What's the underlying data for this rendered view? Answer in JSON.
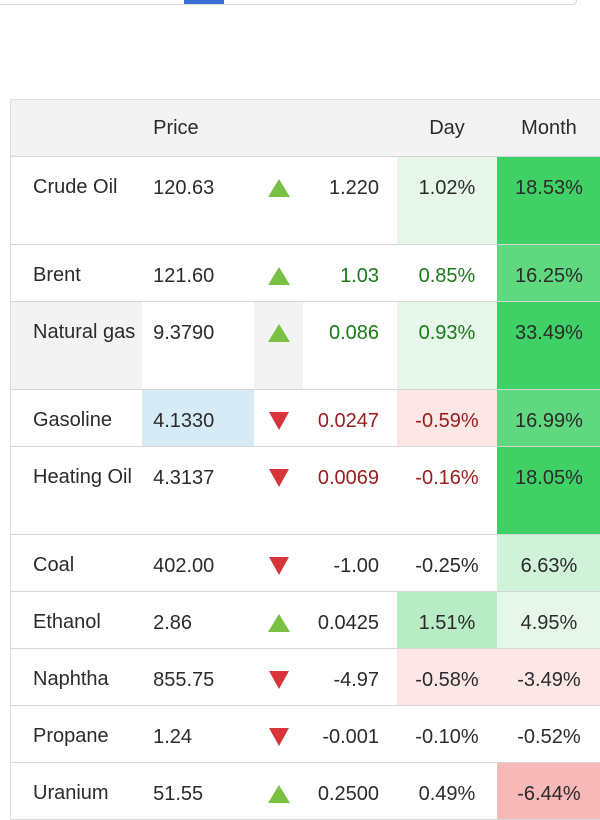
{
  "header": {
    "price": "Price",
    "day": "Day",
    "month": "Month"
  },
  "rows": [
    {
      "name": "Crude Oil",
      "price": "120.63",
      "direction": "up",
      "change": "1.220",
      "day": "1.02%",
      "month": "18.53%"
    },
    {
      "name": "Brent",
      "price": "121.60",
      "direction": "up",
      "change": "1.03",
      "day": "0.85%",
      "month": "16.25%"
    },
    {
      "name": "Natural gas",
      "price": "9.3790",
      "direction": "up",
      "change": "0.086",
      "day": "0.93%",
      "month": "33.49%"
    },
    {
      "name": "Gasoline",
      "price": "4.1330",
      "direction": "down",
      "change": "0.0247",
      "day": "-0.59%",
      "month": "16.99%"
    },
    {
      "name": "Heating Oil",
      "price": "4.3137",
      "direction": "down",
      "change": "0.0069",
      "day": "-0.16%",
      "month": "18.05%"
    },
    {
      "name": "Coal",
      "price": "402.00",
      "direction": "down",
      "change": "-1.00",
      "day": "-0.25%",
      "month": "6.63%"
    },
    {
      "name": "Ethanol",
      "price": "2.86",
      "direction": "up",
      "change": "0.0425",
      "day": "1.51%",
      "month": "4.95%"
    },
    {
      "name": "Naphtha",
      "price": "855.75",
      "direction": "down",
      "change": "-4.97",
      "day": "-0.58%",
      "month": "-3.49%"
    },
    {
      "name": "Propane",
      "price": "1.24",
      "direction": "down",
      "change": "-0.001",
      "day": "-0.10%",
      "month": "-0.52%"
    },
    {
      "name": "Uranium",
      "price": "51.55",
      "direction": "up",
      "change": "0.2500",
      "day": "0.49%",
      "month": "-6.44%"
    }
  ],
  "icons": {
    "up": "triangle-up-icon",
    "down": "triangle-down-icon"
  },
  "colors": {
    "up_arrow": "#7ac143",
    "down_arrow": "#d9343a",
    "up_text": "#1a7a1a",
    "down_text": "#9a1c1c",
    "strong_green": "#3fd165",
    "light_red": "#fde6e6",
    "highlight_blue": "#d6ebf6"
  }
}
